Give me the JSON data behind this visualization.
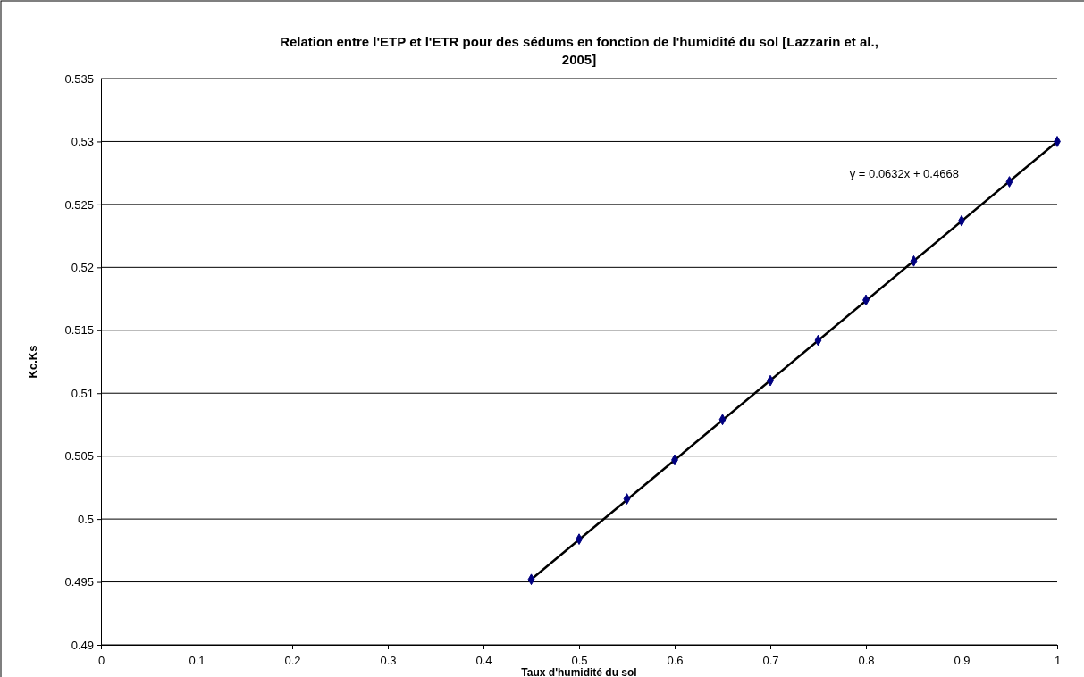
{
  "chart_data": {
    "type": "scatter",
    "title": "Relation entre l'ETP et l'ETR pour des sédums en fonction de l'humidité du sol [Lazzarin et al., 2005]",
    "xlabel": "Taux d'humidité du sol",
    "ylabel": "Kc.Ks",
    "x": [
      0.45,
      0.5,
      0.55,
      0.6,
      0.65,
      0.7,
      0.75,
      0.8,
      0.85,
      0.9,
      0.95,
      1.0
    ],
    "series": [
      {
        "type": "line",
        "color": "#000000",
        "x": [
          0.45,
          1.0
        ],
        "values": [
          0.4952,
          0.53
        ],
        "marker": "none"
      },
      {
        "color": "#000080",
        "values": [
          0.4952,
          0.4984,
          0.5016,
          0.5047,
          0.5079,
          0.511,
          0.5142,
          0.5174,
          0.5205,
          0.5237,
          0.5268,
          0.53
        ],
        "marker": "diamond"
      }
    ],
    "annotations": [
      "y = 0.0632x + 0.4668"
    ],
    "xlim": [
      0,
      1
    ],
    "xticks": [
      0,
      0.1,
      0.2,
      0.3,
      0.4,
      0.5,
      0.6,
      0.7,
      0.8,
      0.9,
      1
    ],
    "ylim": [
      0.49,
      0.535
    ],
    "yticks": [
      0.49,
      0.495,
      0.5,
      0.505,
      0.51,
      0.515,
      0.52,
      0.525,
      0.53,
      0.535
    ],
    "grid": "y"
  }
}
